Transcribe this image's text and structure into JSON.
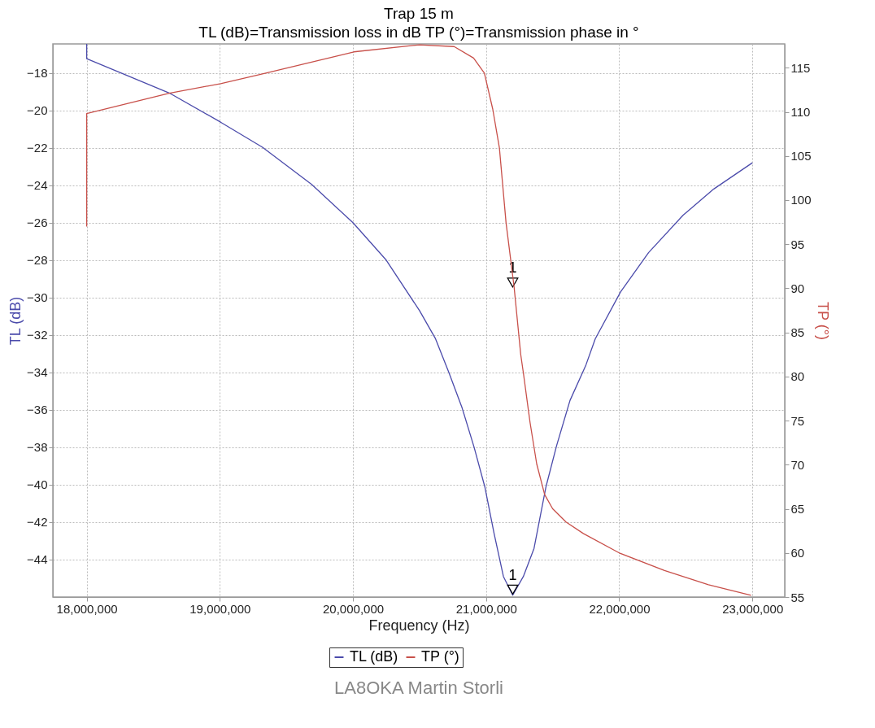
{
  "chart_data": {
    "type": "line",
    "title": "Trap 15 m",
    "subtitle": "TL (dB)=Transmission loss in dB    TP (°)=Transmission phase in °",
    "xlabel": "Frequency (Hz)",
    "ylabel": "TL (dB)",
    "y2label": "TP (°)",
    "xlim": [
      17746000,
      23243000
    ],
    "xticks": [
      {
        "value": 18000000,
        "label": "18,000,000"
      },
      {
        "value": 19000000,
        "label": "19,000,000"
      },
      {
        "value": 20000000,
        "label": "20,000,000"
      },
      {
        "value": 21000000,
        "label": "21,000,000"
      },
      {
        "value": 22000000,
        "label": "22,000,000"
      },
      {
        "value": 23000000,
        "label": "23,000,000"
      }
    ],
    "ylim": [
      -46,
      -16.45
    ],
    "yticks": [
      -44,
      -42,
      -40,
      -38,
      -36,
      -34,
      -32,
      -30,
      -28,
      -26,
      -24,
      -22,
      -20,
      -18
    ],
    "y2lim": [
      55,
      117.7
    ],
    "y2ticks": [
      55,
      60,
      65,
      70,
      75,
      80,
      85,
      90,
      95,
      100,
      105,
      110,
      115
    ],
    "grid": true,
    "legend": "bottom",
    "series": [
      {
        "name": "TL (dB)",
        "color": "#4b4bab",
        "x": [
          18000000,
          18000000,
          18620000,
          19006000,
          19320000,
          19690000,
          20000000,
          20250000,
          20500000,
          20620000,
          20720000,
          20820000,
          20910000,
          20990000,
          21060000,
          21130000,
          21200000,
          21280000,
          21360000,
          21450000,
          21530000,
          21630000,
          21750000,
          21820000,
          22010000,
          22220000,
          22480000,
          22710000,
          23000000
        ],
        "values": [
          -16.45,
          -17.24,
          -19.07,
          -20.63,
          -21.97,
          -23.96,
          -26.0,
          -28.0,
          -30.7,
          -32.2,
          -34.0,
          -35.9,
          -38.0,
          -40.1,
          -42.6,
          -44.9,
          -45.9,
          -44.9,
          -43.4,
          -40.1,
          -37.9,
          -35.5,
          -33.6,
          -32.2,
          -29.7,
          -27.6,
          -25.6,
          -24.2,
          -22.8
        ]
      },
      {
        "name": "TP (°)",
        "color": "#c8504a",
        "axis": "y2",
        "x": [
          18000000,
          18000000,
          18620000,
          19006000,
          19320000,
          20007000,
          20500000,
          20760000,
          20906000,
          20987000,
          21050000,
          21100000,
          21150000,
          21210000,
          21260000,
          21280000,
          21330000,
          21380000,
          21440000,
          21500000,
          21600000,
          21730000,
          22000000,
          22340000,
          22670000,
          22990000
        ],
        "values": [
          97.0,
          109.8,
          112.1,
          113.2,
          114.3,
          116.8,
          117.6,
          117.4,
          116.1,
          114.4,
          110.3,
          105.9,
          97.4,
          90.2,
          82.5,
          80.4,
          74.8,
          70.1,
          66.6,
          65.0,
          63.5,
          62.2,
          60.0,
          58.0,
          56.4,
          55.2
        ]
      }
    ],
    "annotations": [
      {
        "text": "1",
        "x": 21200000,
        "y": -45.6
      },
      {
        "text": "1",
        "x": 21200000,
        "y": -29.2
      },
      "LA8OKA Martin Storli"
    ]
  }
}
